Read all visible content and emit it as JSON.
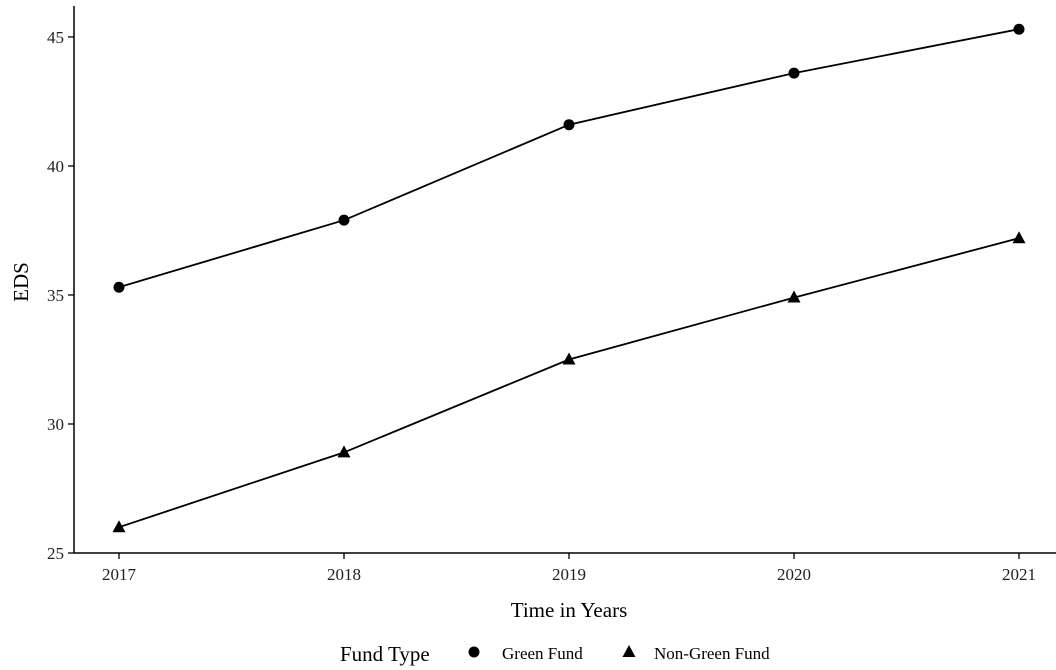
{
  "chart_data": {
    "type": "line",
    "title": "",
    "xlabel": "Time in Years",
    "ylabel": "EDS",
    "x": [
      2017,
      2018,
      2019,
      2020,
      2021
    ],
    "xticks": [
      "2017",
      "2018",
      "2019",
      "2020",
      "2021"
    ],
    "ylim": [
      25,
      46.2
    ],
    "yticks": [
      25,
      30,
      35,
      40,
      45
    ],
    "ytick_labels": [
      "25",
      "30",
      "35",
      "40",
      "45"
    ],
    "grid": false,
    "legend": {
      "title": "Fund Type",
      "placement": "bottom",
      "entries": [
        "Green Fund",
        "Non-Green Fund"
      ]
    },
    "series": [
      {
        "name": "Green Fund",
        "marker": "circle",
        "color": "#000000",
        "values": [
          35.3,
          37.9,
          41.6,
          43.6,
          45.3
        ]
      },
      {
        "name": "Non-Green Fund",
        "marker": "triangle",
        "color": "#000000",
        "values": [
          26.0,
          28.9,
          32.5,
          34.9,
          37.2
        ]
      }
    ]
  }
}
